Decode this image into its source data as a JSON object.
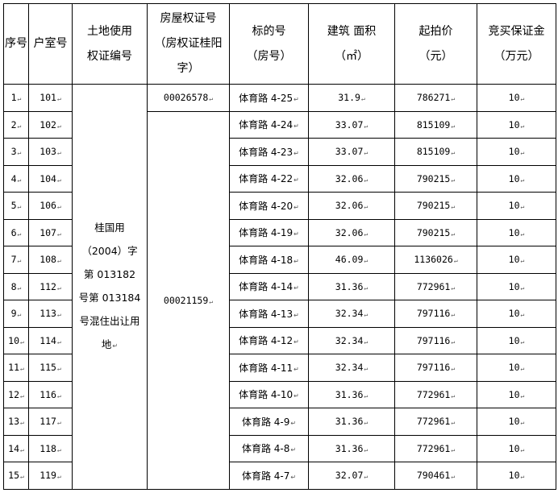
{
  "headers": {
    "seq": "序号",
    "room": "户室号",
    "land_cert": "土地使用权证编号",
    "house_cert": "房屋权证号（房权证桂阳字）",
    "lot": "标的号（房号）",
    "area": "建筑 面积（㎡）",
    "price": "起拍价（元）",
    "deposit": "竞买保证金（万元）"
  },
  "land_cert_value": "桂国用（2004）字第 013182 号第 013184 号混住出让用地",
  "house_cert_values": [
    "00026578",
    "00021159"
  ],
  "rows": [
    {
      "seq": "1",
      "room": "101",
      "lot": "体育路 4-25",
      "area": "31.9",
      "price": "786271",
      "deposit": "10"
    },
    {
      "seq": "2",
      "room": "102",
      "lot": "体育路 4-24",
      "area": "33.07",
      "price": "815109",
      "deposit": "10"
    },
    {
      "seq": "3",
      "room": "103",
      "lot": "体育路 4-23",
      "area": "33.07",
      "price": "815109",
      "deposit": "10"
    },
    {
      "seq": "4",
      "room": "104",
      "lot": "体育路 4-22",
      "area": "32.06",
      "price": "790215",
      "deposit": "10"
    },
    {
      "seq": "5",
      "room": "106",
      "lot": "体育路 4-20",
      "area": "32.06",
      "price": "790215",
      "deposit": "10"
    },
    {
      "seq": "6",
      "room": "107",
      "lot": "体育路 4-19",
      "area": "32.06",
      "price": "790215",
      "deposit": "10"
    },
    {
      "seq": "7",
      "room": "108",
      "lot": "体育路 4-18",
      "area": "46.09",
      "price": "1136026",
      "deposit": "10"
    },
    {
      "seq": "8",
      "room": "112",
      "lot": "体育路 4-14",
      "area": "31.36",
      "price": "772961",
      "deposit": "10"
    },
    {
      "seq": "9",
      "room": "113",
      "lot": "体育路 4-13",
      "area": "32.34",
      "price": "797116",
      "deposit": "10"
    },
    {
      "seq": "10",
      "room": "114",
      "lot": "体育路 4-12",
      "area": "32.34",
      "price": "797116",
      "deposit": "10"
    },
    {
      "seq": "11",
      "room": "115",
      "lot": "体育路 4-11",
      "area": "32.34",
      "price": "797116",
      "deposit": "10"
    },
    {
      "seq": "12",
      "room": "116",
      "lot": "体育路 4-10",
      "area": "31.36",
      "price": "772961",
      "deposit": "10"
    },
    {
      "seq": "13",
      "room": "117",
      "lot": "体育路 4-9",
      "area": "31.36",
      "price": "772961",
      "deposit": "10"
    },
    {
      "seq": "14",
      "room": "118",
      "lot": "体育路 4-8",
      "area": "31.36",
      "price": "772961",
      "deposit": "10"
    },
    {
      "seq": "15",
      "room": "119",
      "lot": "体育路 4-7",
      "area": "32.07",
      "price": "790461",
      "deposit": "10"
    }
  ]
}
